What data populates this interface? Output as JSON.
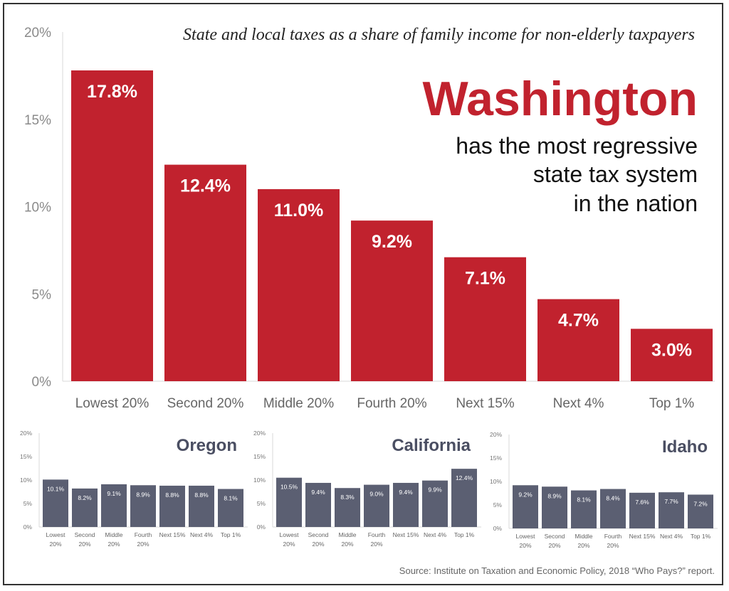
{
  "colors": {
    "main_bar": "#c1222e",
    "small_bar": "#5b5f72",
    "headline": "#c1222e",
    "small_title": "#4a4e62"
  },
  "subtitle": "State and local taxes as a share of family income for non-elderly taxpayers",
  "headline": "Washington",
  "tagline": [
    "has the most regressive",
    "state tax system",
    "in the nation"
  ],
  "source": "Source: Institute on Taxation and Economic Policy, 2018 “Who Pays?” report.",
  "chart_data": [
    {
      "type": "bar",
      "title": "Washington",
      "categories": [
        "Lowest 20%",
        "Second 20%",
        "Middle 20%",
        "Fourth 20%",
        "Next 15%",
        "Next 4%",
        "Top 1%"
      ],
      "values": [
        17.8,
        12.4,
        11.0,
        9.2,
        7.1,
        4.7,
        3.0
      ],
      "value_labels": [
        "17.8%",
        "12.4%",
        "11.0%",
        "9.2%",
        "7.1%",
        "4.7%",
        "3.0%"
      ],
      "yticks": [
        "0%",
        "5%",
        "10%",
        "15%",
        "20%"
      ],
      "ylim": [
        0,
        20
      ],
      "grid": false
    },
    {
      "type": "bar",
      "title": "Oregon",
      "categories": [
        [
          "Lowest",
          "20%"
        ],
        [
          "Second",
          "20%"
        ],
        [
          "Middle",
          "20%"
        ],
        [
          "Fourth",
          "20%"
        ],
        [
          "Next 15%"
        ],
        [
          "Next 4%"
        ],
        [
          "Top 1%"
        ]
      ],
      "values": [
        10.1,
        8.2,
        9.1,
        8.9,
        8.8,
        8.8,
        8.1
      ],
      "value_labels": [
        "10.1%",
        "8.2%",
        "9.1%",
        "8.9%",
        "8.8%",
        "8.8%",
        "8.1%"
      ],
      "yticks": [
        "0%",
        "5%",
        "10%",
        "15%",
        "20%"
      ],
      "ylim": [
        0,
        20
      ]
    },
    {
      "type": "bar",
      "title": "California",
      "categories": [
        [
          "Lowest",
          "20%"
        ],
        [
          "Second",
          "20%"
        ],
        [
          "Middle",
          "20%"
        ],
        [
          "Fourth",
          "20%"
        ],
        [
          "Next 15%"
        ],
        [
          "Next 4%"
        ],
        [
          "Top 1%"
        ]
      ],
      "values": [
        10.5,
        9.4,
        8.3,
        9.0,
        9.4,
        9.9,
        12.4
      ],
      "value_labels": [
        "10.5%",
        "9.4%",
        "8.3%",
        "9.0%",
        "9.4%",
        "9.9%",
        "12.4%"
      ],
      "yticks": [
        "0%",
        "5%",
        "10%",
        "15%",
        "20%"
      ],
      "ylim": [
        0,
        20
      ]
    },
    {
      "type": "bar",
      "title": "Idaho",
      "categories": [
        [
          "Lowest",
          "20%"
        ],
        [
          "Second",
          "20%"
        ],
        [
          "Middle",
          "20%"
        ],
        [
          "Fourth",
          "20%"
        ],
        [
          "Next 15%"
        ],
        [
          "Next 4%"
        ],
        [
          "Top 1%"
        ]
      ],
      "values": [
        9.2,
        8.9,
        8.1,
        8.4,
        7.6,
        7.7,
        7.2
      ],
      "value_labels": [
        "9.2%",
        "8.9%",
        "8.1%",
        "8.4%",
        "7.6%",
        "7.7%",
        "7.2%"
      ],
      "yticks": [
        "0%",
        "5%",
        "10%",
        "15%",
        "20%"
      ],
      "ylim": [
        0,
        20
      ]
    }
  ]
}
